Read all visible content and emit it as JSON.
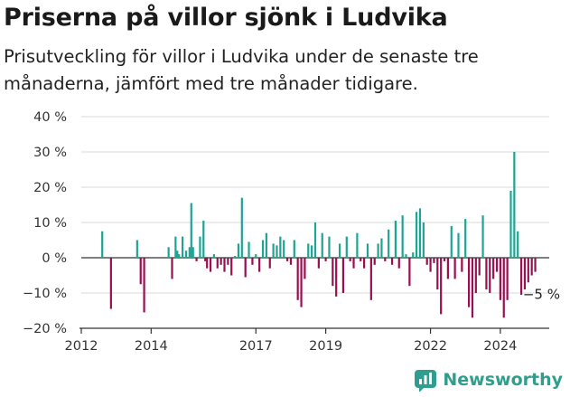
{
  "title": "Priserna på villor sjönk i Ludvika",
  "subtitle": "Prisutveckling för villor i Ludvika under de senaste tre månaderna, jämfört med tre månader tidigare.",
  "brand": {
    "name": "Newsworthy",
    "icon": "newsworthy-logo-icon"
  },
  "colors": {
    "positive": "#1fa393",
    "negative": "#990f50",
    "grid": "#d9d9d9",
    "axis": "#444444"
  },
  "chart_data": {
    "type": "bar",
    "ylim": [
      -20,
      40
    ],
    "yticks": [
      -20,
      -10,
      0,
      10,
      20,
      30,
      40
    ],
    "ytick_labels": [
      "−20 %",
      "−10 %",
      "0 %",
      "10 %",
      "20 %",
      "30 %",
      "40 %"
    ],
    "xlim": [
      2012,
      2025.4
    ],
    "xticks": [
      2012,
      2014,
      2017,
      2019,
      2022,
      2024
    ],
    "xtick_labels": [
      "2012",
      "2014",
      "2017",
      "2019",
      "2022",
      "2024"
    ],
    "grid": true,
    "annotation": {
      "text": "−5 %",
      "x": 2024.75,
      "y": -5
    },
    "x": [
      2012.6,
      2012.85,
      2013.6,
      2013.7,
      2013.8,
      2014.5,
      2014.6,
      2014.7,
      2014.75,
      2014.8,
      2014.9,
      2015.0,
      2015.1,
      2015.15,
      2015.2,
      2015.3,
      2015.4,
      2015.5,
      2015.55,
      2015.6,
      2015.7,
      2015.8,
      2015.9,
      2016.0,
      2016.1,
      2016.2,
      2016.3,
      2016.4,
      2016.5,
      2016.6,
      2016.7,
      2016.8,
      2016.9,
      2017.0,
      2017.1,
      2017.2,
      2017.3,
      2017.4,
      2017.5,
      2017.6,
      2017.7,
      2017.8,
      2017.9,
      2018.0,
      2018.1,
      2018.2,
      2018.3,
      2018.4,
      2018.5,
      2018.6,
      2018.7,
      2018.8,
      2018.9,
      2019.0,
      2019.1,
      2019.2,
      2019.3,
      2019.4,
      2019.5,
      2019.6,
      2019.7,
      2019.8,
      2019.9,
      2020.0,
      2020.1,
      2020.2,
      2020.3,
      2020.4,
      2020.5,
      2020.6,
      2020.7,
      2020.8,
      2020.9,
      2021.0,
      2021.1,
      2021.2,
      2021.3,
      2021.4,
      2021.5,
      2021.6,
      2021.7,
      2021.8,
      2021.9,
      2022.0,
      2022.1,
      2022.2,
      2022.3,
      2022.4,
      2022.5,
      2022.6,
      2022.7,
      2022.8,
      2022.9,
      2023.0,
      2023.1,
      2023.2,
      2023.3,
      2023.4,
      2023.5,
      2023.6,
      2023.7,
      2023.8,
      2023.9,
      2024.0,
      2024.1,
      2024.2,
      2024.3,
      2024.4,
      2024.5,
      2024.6,
      2024.7,
      2024.8,
      2024.9,
      2025.0
    ],
    "values": [
      7.5,
      -14.5,
      5,
      -7.5,
      -15.5,
      3,
      -6,
      6,
      2,
      1,
      6,
      2,
      3,
      15.5,
      3,
      -1,
      6,
      10.5,
      -1,
      -3,
      -4,
      1,
      -3,
      -2,
      -4,
      -2,
      -5,
      0.5,
      4,
      17,
      -5.5,
      4.5,
      -2,
      1,
      -4,
      5,
      7,
      -3,
      4,
      3.5,
      6,
      5,
      -1,
      -2,
      5,
      -12,
      -14,
      -6,
      4,
      3.5,
      10,
      -3,
      7,
      -1,
      6,
      -8,
      -11,
      4,
      -10,
      6,
      -1,
      -3,
      7,
      -1,
      -3,
      4,
      -12,
      -2,
      4,
      5.5,
      -1,
      8,
      -2,
      10.5,
      -3,
      12,
      1,
      -8,
      1.5,
      13,
      14,
      10,
      -2,
      -4,
      -1.5,
      -9,
      -16,
      -1,
      -6,
      9,
      -6,
      7,
      -4,
      11,
      -14,
      -17,
      -10,
      -5,
      12,
      -9,
      -10,
      -6,
      -4,
      -12,
      -17,
      -12,
      19,
      30,
      7.5,
      -10.5,
      -9,
      -7,
      -5,
      -4
    ]
  }
}
